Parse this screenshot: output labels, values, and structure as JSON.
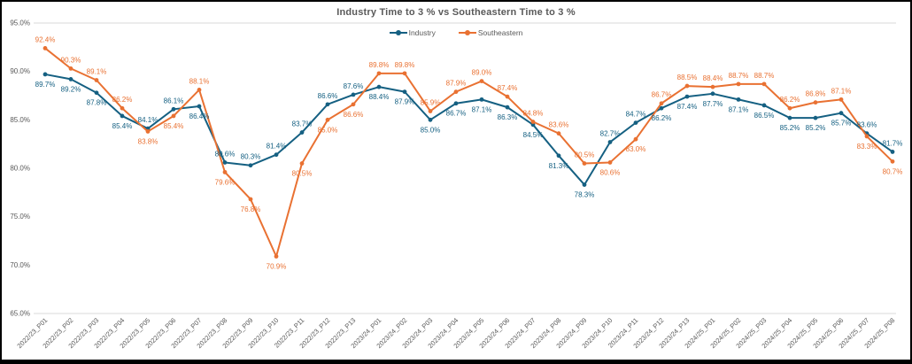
{
  "window": {
    "background_color": "#FFFFFF",
    "frame_border_color": "#000000"
  },
  "chart_data": {
    "type": "line",
    "title": "Industry Time to 3 % vs Southeastern Time to 3 %",
    "legend_position": "top-center",
    "xlabel": "",
    "ylabel": "",
    "ylim": [
      65,
      95
    ],
    "ytick_labels": [
      "95.0%",
      "90.0%",
      "85.0%",
      "80.0%",
      "75.0%",
      "70.0%",
      "65.0%"
    ],
    "grid": "top and bottom boundary lines only",
    "gridline_color": "#D9D9D9",
    "axis_text_color": "#595959",
    "data_label_suffix": "%",
    "categories": [
      "2022/23_P01",
      "2022/23_P02",
      "2022/23_P03",
      "2022/23_P04",
      "2022/23_P05",
      "2022/23_P06",
      "2022/23_P07",
      "2022/23_P08",
      "2022/23_P09",
      "2022/23_P10",
      "2022/23_P11",
      "2022/23_P12",
      "2022/23_P13",
      "2023/24_P01",
      "2023/24_P02",
      "2023/24_P03",
      "2023/24_P04",
      "2023/24_P05",
      "2023/24_P06",
      "2023/24_P07",
      "2023/24_P08",
      "2023/24_P09",
      "2023/24_P10",
      "2023/24_P11",
      "2023/24_P12",
      "2023/24_P13",
      "2024/25_P01",
      "2024/25_P02",
      "2024/25_P03",
      "2024/25_P04",
      "2024/25_P05",
      "2024/25_P06",
      "2024/25_P07",
      "2024/25_P08"
    ],
    "series": [
      {
        "name": "Industry",
        "color": "#156082",
        "values": [
          89.7,
          89.2,
          87.8,
          85.4,
          84.1,
          86.1,
          86.4,
          80.6,
          80.3,
          81.4,
          83.7,
          86.6,
          87.6,
          88.4,
          87.9,
          85.0,
          86.7,
          87.1,
          86.3,
          84.5,
          81.3,
          78.3,
          82.7,
          84.7,
          86.2,
          87.4,
          87.7,
          87.1,
          86.5,
          85.2,
          85.2,
          85.7,
          83.6,
          81.7
        ]
      },
      {
        "name": "Southeastern",
        "color": "#E97132",
        "values": [
          92.4,
          90.3,
          89.1,
          86.2,
          83.8,
          85.4,
          88.1,
          79.6,
          76.8,
          70.9,
          80.5,
          85.0,
          86.6,
          89.8,
          89.8,
          85.9,
          87.9,
          89.0,
          87.4,
          84.8,
          83.6,
          80.5,
          80.6,
          83.0,
          86.7,
          88.5,
          88.4,
          88.7,
          88.7,
          86.2,
          86.8,
          87.1,
          83.3,
          80.7
        ]
      }
    ]
  }
}
